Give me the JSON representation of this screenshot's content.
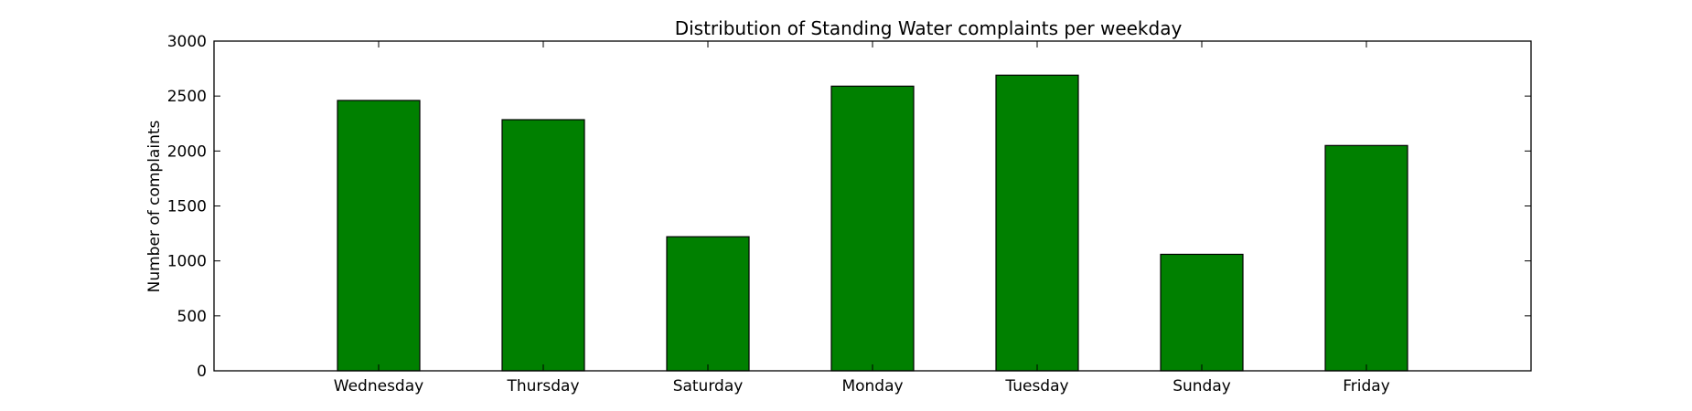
{
  "chart_data": {
    "type": "bar",
    "title": "Distribution of  Standing Water complaints per weekday",
    "xlabel": "",
    "ylabel": "Number of complaints",
    "categories": [
      "Wednesday",
      "Thursday",
      "Saturday",
      "Monday",
      "Tuesday",
      "Sunday",
      "Friday"
    ],
    "values": [
      2460,
      2285,
      1220,
      2590,
      2690,
      1060,
      2050
    ],
    "ylim": [
      0,
      3000
    ],
    "yticks": [
      0,
      500,
      1000,
      1500,
      2000,
      2500,
      3000
    ],
    "grid": false,
    "legend": "none",
    "bar_color": "#008000",
    "edge_color": "#000000"
  }
}
